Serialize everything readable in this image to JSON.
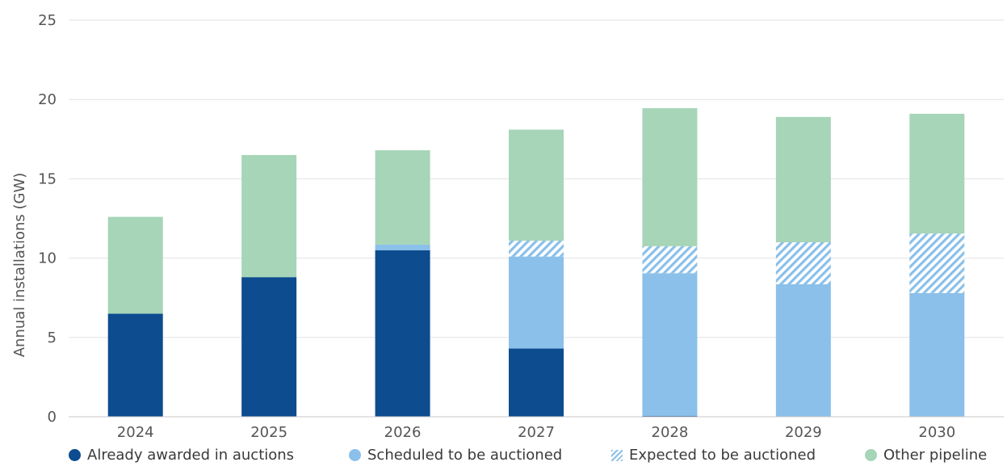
{
  "chart_data": {
    "type": "bar",
    "stacked": true,
    "categories": [
      "2024",
      "2025",
      "2026",
      "2027",
      "2028",
      "2029",
      "2030"
    ],
    "ylabel": "Annual installations (GW)",
    "xlabel": "",
    "ylim": [
      0,
      25
    ],
    "yticks": [
      0,
      5,
      10,
      15,
      20,
      25
    ],
    "grid": "horizontal",
    "legend_position": "bottom",
    "series": [
      {
        "name": "Already awarded in auctions",
        "values": [
          6.5,
          8.8,
          10.5,
          4.3,
          0.05,
          0,
          0
        ],
        "color": "#0d4c8f",
        "pattern": "solid"
      },
      {
        "name": "Scheduled to be auctioned",
        "values": [
          0,
          0,
          0.35,
          5.8,
          9.0,
          8.35,
          7.8
        ],
        "color": "#8ac0ea",
        "pattern": "solid"
      },
      {
        "name": "Expected to be auctioned",
        "values": [
          0,
          0,
          0,
          1.0,
          1.7,
          2.65,
          3.75
        ],
        "color": "#8ac0ea",
        "pattern": "hatch"
      },
      {
        "name": "Other pipeline",
        "values": [
          6.1,
          7.7,
          5.95,
          7.0,
          8.7,
          7.9,
          7.55
        ],
        "color": "#a6d5b7",
        "pattern": "solid"
      }
    ]
  }
}
